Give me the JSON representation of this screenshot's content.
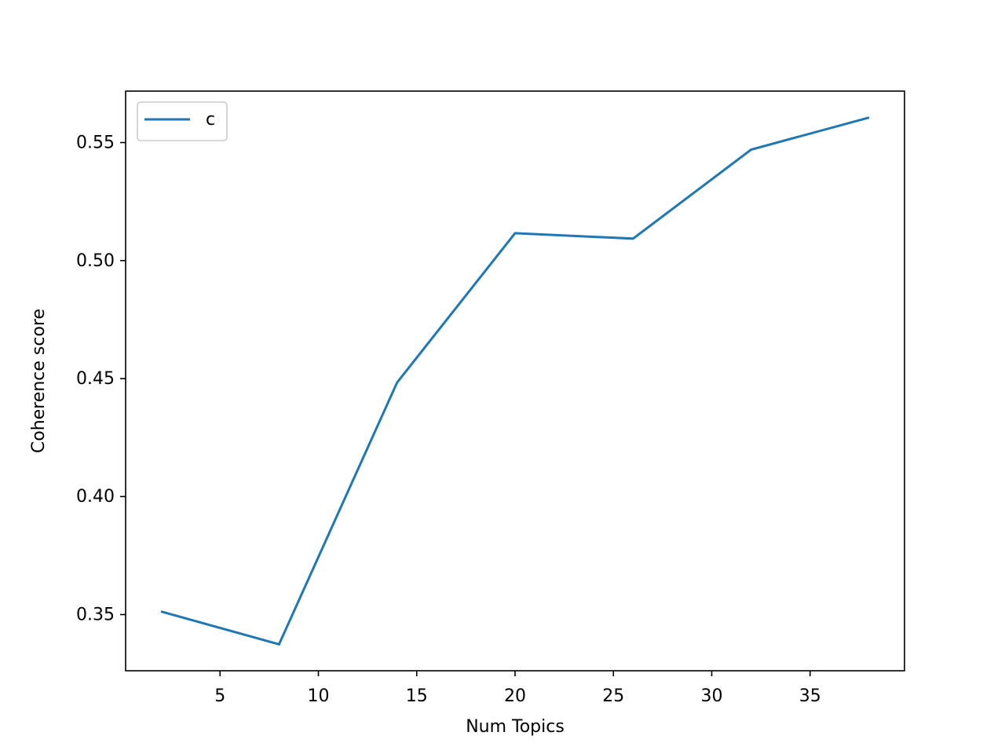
{
  "chart_data": {
    "type": "line",
    "x_label": "Num Topics",
    "y_label": "Coherence score",
    "x": [
      2,
      8,
      14,
      20,
      26,
      32,
      38
    ],
    "series": [
      {
        "name": "c",
        "color": "#1f77b4",
        "values": [
          0.3513,
          0.3374,
          0.4483,
          0.5116,
          0.5093,
          0.547,
          0.5606
        ]
      }
    ],
    "xlim": [
      0.2,
      39.8
    ],
    "xticks": [
      5,
      10,
      15,
      20,
      25,
      30,
      35
    ],
    "ylim": [
      0.3262,
      0.5718
    ],
    "yticks": [
      0.35,
      {
        "value": 0.4,
        "label": "0.40"
      },
      0.45,
      {
        "value": 0.5,
        "label": "0.50"
      },
      0.55
    ],
    "legend": "upper left",
    "grid": false
  }
}
